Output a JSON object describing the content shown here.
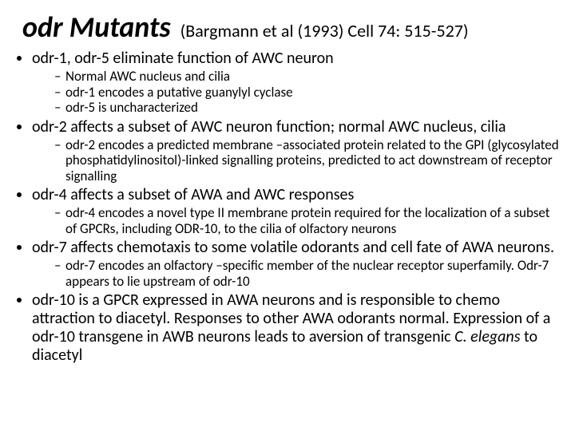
{
  "title": "odr Mutants",
  "citation": "(Bargmann et al (1993)  Cell 74: 515-527)",
  "bullets": {
    "b1": "odr-1, odr-5 eliminate function of AWC neuron",
    "b1_subs": {
      "s1": "Normal AWC nucleus and cilia",
      "s2": "odr-1 encodes a putative guanylyl cyclase",
      "s3": "odr-5 is uncharacterized"
    },
    "b2": "odr-2 affects a subset of AWC neuron function; normal AWC nucleus, cilia",
    "b2_subs": {
      "s1": "odr-2 encodes a predicted membrane –associated protein related to the GPI (glycosylated phosphatidylinositol)-linked signalling proteins, predicted to act downstream of receptor signalling"
    },
    "b3": "odr-4 affects a subset of AWA and AWC responses",
    "b3_subs": {
      "s1": "odr-4 encodes a novel type II membrane protein required for the localization of a subset of GPCRs, including ODR-10, to the cilia of olfactory neurons"
    },
    "b4": "odr-7 affects chemotaxis to some volatile odorants and cell fate of AWA neurons.",
    "b4_subs": {
      "s1": "odr-7 encodes an olfactory –specific member of the nuclear receptor superfamily.  Odr-7  appears to lie upstream of odr-10"
    },
    "b5_pre": "odr-10 is a GPCR expressed in AWA neurons and is responsible to chemo attraction to diacetyl.  Responses to other AWA odorants normal.  Expression of a odr-10 transgene in AWB neurons leads to aversion of transgenic ",
    "b5_ital": "C. elegans",
    "b5_post": " to diacetyl"
  }
}
